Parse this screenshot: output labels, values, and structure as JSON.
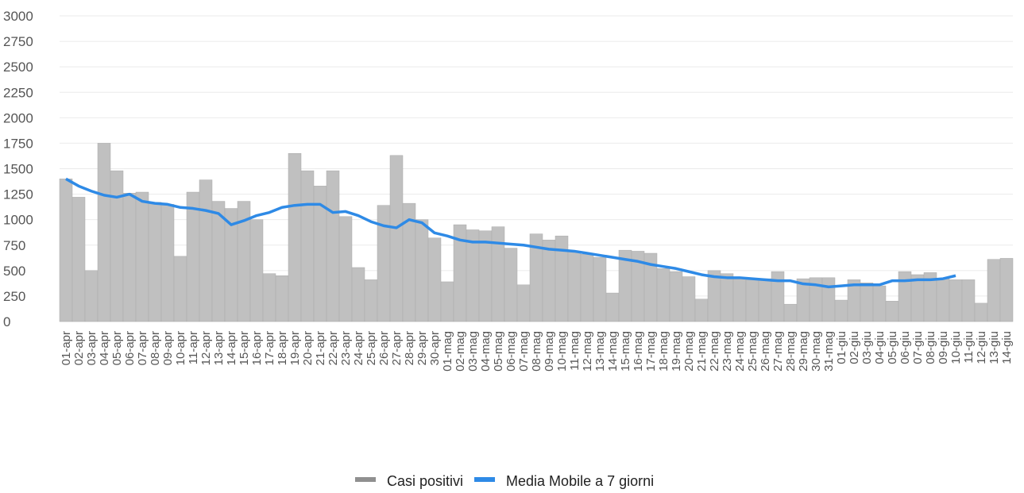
{
  "chart_data": {
    "type": "bar",
    "categories": [
      "01-apr",
      "02-apr",
      "03-apr",
      "04-apr",
      "05-apr",
      "06-apr",
      "07-apr",
      "08-apr",
      "09-apr",
      "10-apr",
      "11-apr",
      "12-apr",
      "13-apr",
      "14-apr",
      "15-apr",
      "16-apr",
      "17-apr",
      "18-apr",
      "19-apr",
      "20-apr",
      "21-apr",
      "22-apr",
      "23-apr",
      "24-apr",
      "25-apr",
      "26-apr",
      "27-apr",
      "28-apr",
      "29-apr",
      "30-apr",
      "01-mag",
      "02-mag",
      "03-mag",
      "04-mag",
      "05-mag",
      "06-mag",
      "07-mag",
      "08-mag",
      "09-mag",
      "10-mag",
      "11-mag",
      "12-mag",
      "13-mag",
      "14-mag",
      "15-mag",
      "16-mag",
      "17-mag",
      "18-mag",
      "19-mag",
      "20-mag",
      "21-mag",
      "22-mag",
      "23-mag",
      "24-mag",
      "25-mag",
      "26-mag",
      "27-mag",
      "28-mag",
      "29-mag",
      "30-mag",
      "31-mag",
      "01-giu",
      "02-giu",
      "03-giu",
      "04-giu",
      "05-giu",
      "06-giu",
      "07-giu",
      "08-giu",
      "09-giu",
      "10-giu",
      "11-giu",
      "12-giu",
      "13-giu",
      "14-giu"
    ],
    "series": [
      {
        "name": "Casi positivi",
        "type": "bar",
        "color": "#c0c0c0",
        "legend_color": "#909090",
        "values": [
          1400,
          1220,
          500,
          1750,
          1480,
          1260,
          1270,
          1170,
          1150,
          640,
          1270,
          1390,
          1180,
          1110,
          1180,
          1000,
          470,
          450,
          1650,
          1480,
          1330,
          1480,
          1030,
          530,
          410,
          1140,
          1630,
          1160,
          1000,
          820,
          390,
          950,
          900,
          890,
          930,
          720,
          360,
          860,
          800,
          840,
          690,
          660,
          630,
          280,
          700,
          690,
          670,
          520,
          490,
          440,
          220,
          500,
          470,
          420,
          410,
          420,
          490,
          170,
          420,
          430,
          430,
          210,
          410,
          380,
          350,
          200,
          490,
          460,
          480,
          420,
          410,
          410,
          180,
          610,
          620
        ]
      },
      {
        "name": "Media Mobile a 7 giorni",
        "type": "line",
        "color": "#2e8ae6",
        "values": [
          1400,
          1330,
          1280,
          1240,
          1220,
          1250,
          1180,
          1160,
          1150,
          1120,
          1110,
          1090,
          1060,
          950,
          990,
          1040,
          1070,
          1120,
          1140,
          1150,
          1150,
          1070,
          1080,
          1040,
          980,
          940,
          920,
          1000,
          970,
          870,
          840,
          800,
          780,
          780,
          770,
          760,
          750,
          730,
          710,
          700,
          690,
          670,
          650,
          630,
          610,
          590,
          560,
          540,
          520,
          490,
          460,
          440,
          430,
          430,
          420,
          410,
          400,
          400,
          370,
          360,
          340,
          350,
          360,
          360,
          360,
          400,
          400,
          410,
          410,
          420,
          450,
          null,
          null,
          null,
          null
        ]
      }
    ],
    "ylim": [
      0,
      3000
    ],
    "yticks": [
      0,
      250,
      500,
      750,
      1000,
      1250,
      1500,
      1750,
      2000,
      2250,
      2500,
      2750,
      3000
    ],
    "grid": true,
    "legend": "bottom"
  }
}
